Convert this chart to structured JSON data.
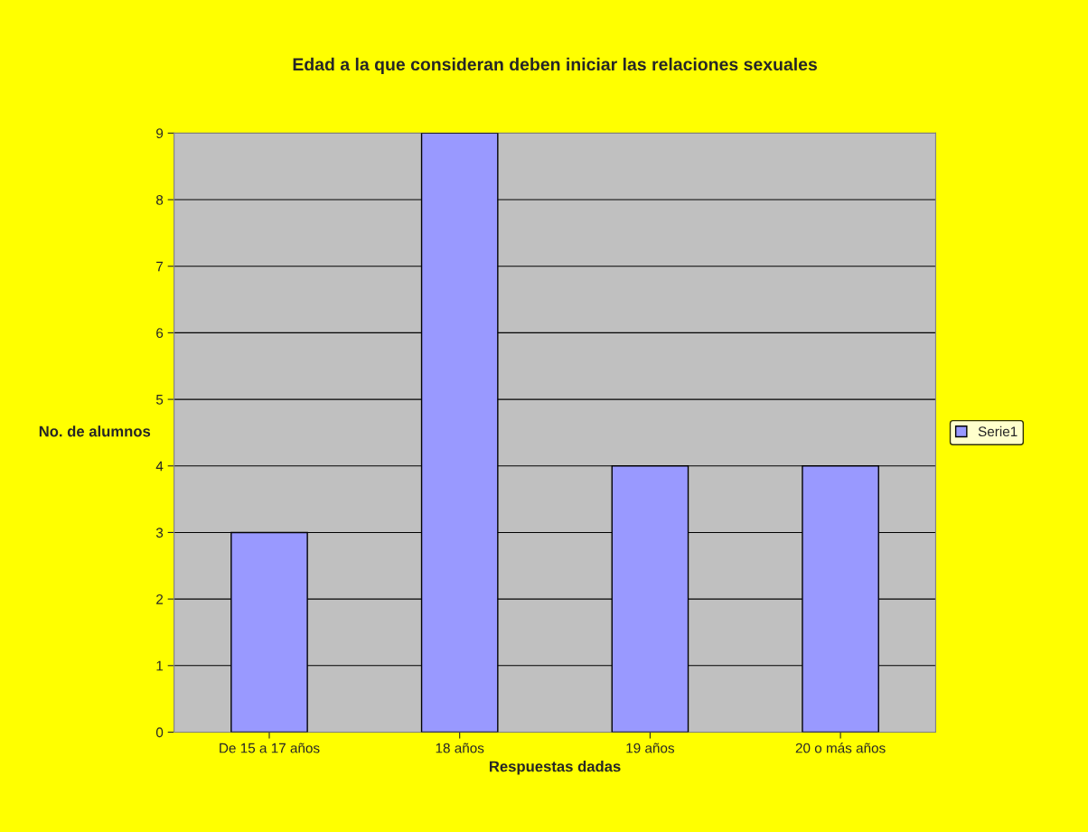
{
  "chart_data": {
    "type": "bar",
    "title": "Edad a la que consideran deben iniciar las relaciones sexuales",
    "xlabel": "Respuestas dadas",
    "ylabel": "No. de alumnos",
    "categories": [
      "De 15 a 17 años",
      "18 años",
      "19 años",
      "20 o más años"
    ],
    "series": [
      {
        "name": "Serie1",
        "color": "#9999ff",
        "values": [
          3,
          9,
          4,
          4
        ]
      }
    ],
    "ylim": [
      0,
      9
    ],
    "yticks": [
      0,
      1,
      2,
      3,
      4,
      5,
      6,
      7,
      8,
      9
    ],
    "grid": "y",
    "legend": "right"
  }
}
